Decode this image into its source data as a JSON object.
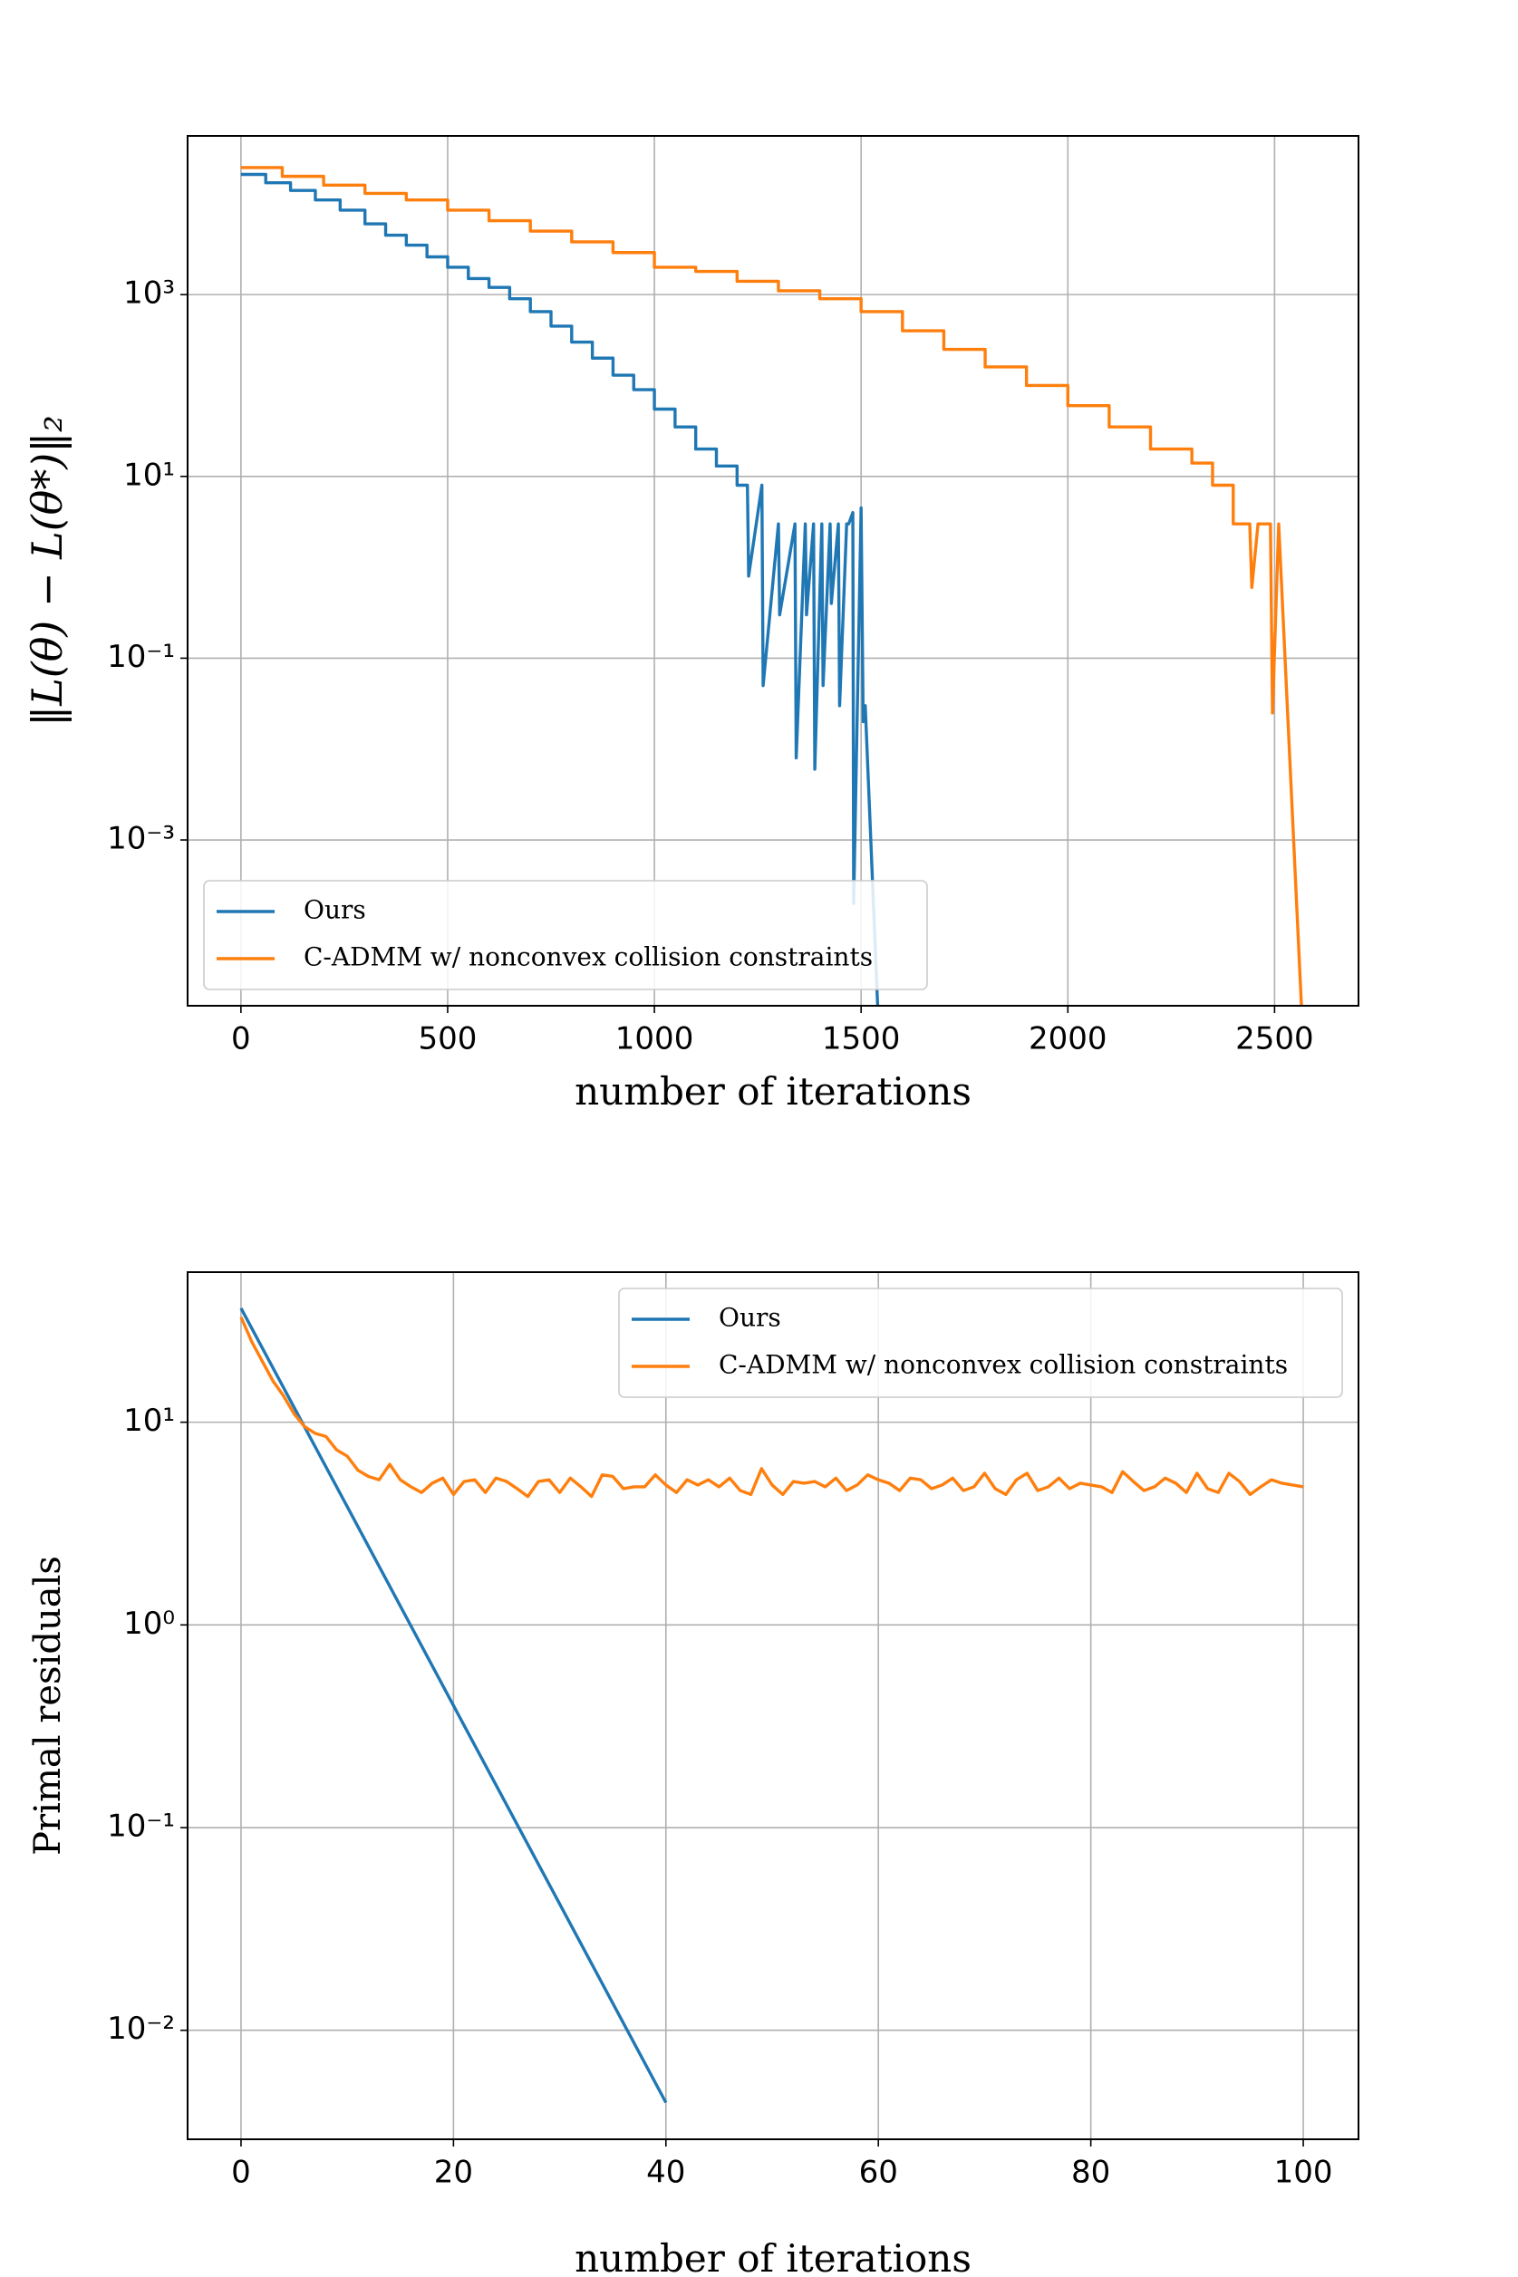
{
  "chart_data": [
    {
      "type": "line",
      "xlabel": "number of iterations",
      "ylabel": "‖L(θ) − L(θ*)‖₂",
      "log_y": true,
      "grid": true,
      "legend": "lower left",
      "xlim": [
        -129,
        2703
      ],
      "xticks": [
        0,
        500,
        1000,
        1500,
        2000,
        2500
      ],
      "ylim": [
        1.5e-05,
        55700
      ],
      "yticks": [
        {
          "value": 0.001,
          "label": "10⁻³"
        },
        {
          "value": 0.1,
          "label": "10⁻¹"
        },
        {
          "value": 10,
          "label": "10¹"
        },
        {
          "value": 1000,
          "label": "10³"
        }
      ],
      "series": [
        {
          "name": "Ours",
          "color": "#1f77b4",
          "x": [
            0,
            60,
            60,
            120,
            120,
            180,
            180,
            240,
            240,
            300,
            300,
            350,
            350,
            400,
            400,
            450,
            450,
            500,
            500,
            550,
            550,
            600,
            600,
            650,
            650,
            700,
            700,
            750,
            750,
            800,
            800,
            850,
            850,
            900,
            900,
            950,
            950,
            1000,
            1000,
            1050,
            1050,
            1100,
            1100,
            1150,
            1150,
            1200,
            1200,
            1225,
            1228,
            1260,
            1263,
            1300,
            1303,
            1340,
            1343,
            1365,
            1368,
            1385,
            1388,
            1405,
            1408,
            1425,
            1428,
            1445,
            1448,
            1465,
            1470,
            1480,
            1482,
            1500,
            1505,
            1510,
            1540
          ],
          "values": [
            21000,
            21000,
            17000,
            17000,
            14000,
            14000,
            11000,
            11000,
            8500,
            8500,
            6000,
            6000,
            4500,
            4500,
            3500,
            3500,
            2600,
            2600,
            2000,
            2000,
            1500,
            1500,
            1200,
            1200,
            900,
            900,
            650,
            650,
            450,
            450,
            300,
            300,
            200,
            200,
            130,
            130,
            90,
            90,
            55,
            55,
            35,
            35,
            20,
            20,
            13,
            13,
            8,
            8,
            0.8,
            8,
            0.05,
            3,
            0.3,
            3,
            0.008,
            3,
            0.3,
            3,
            0.006,
            3,
            0.05,
            3,
            0.4,
            3,
            0.03,
            3,
            3,
            4,
            0.0002,
            4.5,
            0.02,
            0.03,
            1.5e-05
          ]
        },
        {
          "name": "C-ADMM w/ nonconvex collision constraints",
          "color": "#ff7f0e",
          "x": [
            0,
            100,
            100,
            200,
            200,
            300,
            300,
            400,
            400,
            500,
            500,
            600,
            600,
            700,
            700,
            800,
            800,
            900,
            900,
            1000,
            1000,
            1100,
            1100,
            1200,
            1200,
            1300,
            1300,
            1400,
            1400,
            1500,
            1500,
            1600,
            1600,
            1700,
            1700,
            1800,
            1800,
            1900,
            1900,
            2000,
            2000,
            2100,
            2100,
            2200,
            2200,
            2300,
            2300,
            2350,
            2350,
            2400,
            2400,
            2440,
            2445,
            2460,
            2490,
            2495,
            2510,
            2565
          ],
          "values": [
            25000,
            25000,
            20000,
            20000,
            16000,
            16000,
            13000,
            13000,
            11000,
            11000,
            8500,
            8500,
            6500,
            6500,
            5000,
            5000,
            3800,
            3800,
            2900,
            2900,
            2000,
            2000,
            1800,
            1800,
            1400,
            1400,
            1100,
            1100,
            900,
            900,
            650,
            650,
            400,
            400,
            250,
            250,
            160,
            160,
            100,
            100,
            60,
            60,
            35,
            35,
            20,
            20,
            14,
            14,
            8,
            8,
            3,
            3,
            0.6,
            3,
            3,
            0.025,
            3,
            1.5e-05
          ]
        }
      ]
    },
    {
      "type": "line",
      "xlabel": "number of iterations",
      "ylabel": "Primal residuals",
      "log_y": true,
      "grid": true,
      "legend": "upper right",
      "xlim": [
        -5.03,
        105.2
      ],
      "xticks": [
        0,
        20,
        40,
        60,
        80,
        100
      ],
      "ylim": [
        0.0029,
        55
      ],
      "yticks": [
        {
          "value": 0.01,
          "label": "10⁻²"
        },
        {
          "value": 0.1,
          "label": "10⁻¹"
        },
        {
          "value": 1,
          "label": "10⁰"
        },
        {
          "value": 10,
          "label": "10¹"
        }
      ],
      "series": [
        {
          "name": "Ours",
          "color": "#1f77b4",
          "x": [
            0,
            10,
            20,
            30,
            40
          ],
          "values": [
            36.5,
            3.83,
            0.4,
            0.042,
            0.0044
          ]
        },
        {
          "name": "C-ADMM w/ nonconvex collision constraints",
          "color": "#ff7f0e",
          "x": [
            0,
            1,
            2,
            3,
            4,
            5,
            6,
            7,
            8,
            9,
            10,
            11,
            12,
            13,
            14,
            15,
            16,
            17,
            18,
            19,
            20,
            21,
            22,
            23,
            24,
            25,
            26,
            27,
            28,
            29,
            30,
            31,
            32,
            33,
            34,
            35,
            36,
            37,
            38,
            39,
            40,
            41,
            42,
            43,
            44,
            45,
            46,
            47,
            48,
            49,
            50,
            51,
            52,
            53,
            54,
            55,
            56,
            57,
            58,
            59,
            60,
            61,
            62,
            63,
            64,
            65,
            66,
            67,
            68,
            69,
            70,
            71,
            72,
            73,
            74,
            75,
            76,
            77,
            78,
            79,
            80,
            81,
            82,
            83,
            84,
            85,
            86,
            87,
            88,
            89,
            90,
            91,
            92,
            93,
            94,
            95,
            96,
            97,
            98,
            99,
            100
          ],
          "values": [
            33,
            25,
            20,
            16,
            13.5,
            11,
            9.5,
            8.8,
            8.5,
            7.3,
            6.8,
            5.8,
            5.4,
            5.2,
            6.2,
            5.2,
            4.8,
            4.5,
            5.0,
            5.3,
            4.4,
            5.1,
            5.2,
            4.5,
            5.3,
            5.1,
            4.7,
            4.3,
            5.1,
            5.2,
            4.5,
            5.3,
            4.8,
            4.3,
            5.5,
            5.4,
            4.7,
            4.8,
            4.8,
            5.5,
            4.9,
            4.5,
            5.2,
            4.9,
            5.2,
            4.8,
            5.3,
            4.6,
            4.4,
            5.9,
            4.9,
            4.4,
            5.1,
            5.0,
            5.1,
            4.8,
            5.3,
            4.6,
            4.9,
            5.5,
            5.2,
            5.0,
            4.6,
            5.3,
            5.2,
            4.7,
            4.9,
            5.3,
            4.6,
            4.8,
            5.6,
            4.7,
            4.4,
            5.2,
            5.6,
            4.6,
            4.8,
            5.3,
            4.7,
            5.0,
            4.9,
            4.8,
            4.5,
            5.7,
            5.1,
            4.6,
            4.8,
            5.3,
            5.0,
            4.5,
            5.6,
            4.7,
            4.5,
            5.6,
            5.1,
            4.4,
            4.8,
            5.2,
            5.0,
            4.9,
            4.8
          ]
        }
      ]
    }
  ]
}
